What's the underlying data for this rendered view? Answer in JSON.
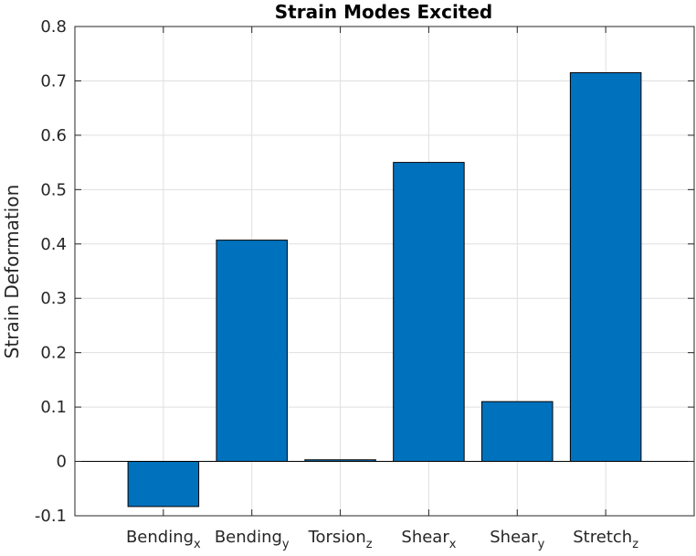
{
  "chart_data": {
    "type": "bar",
    "title": "Strain Modes Excited",
    "ylabel": "Strain Deformation",
    "xlabel": "",
    "ylim": [
      -0.1,
      0.8
    ],
    "yticks": [
      -0.1,
      0,
      0.1,
      0.2,
      0.3,
      0.4,
      0.5,
      0.6,
      0.7,
      0.8
    ],
    "ytick_labels": [
      "-0.1",
      "0",
      "0.1",
      "0.2",
      "0.3",
      "0.4",
      "0.5",
      "0.6",
      "0.7",
      "0.8"
    ],
    "grid": true,
    "categories": [
      {
        "base": "Bending",
        "sub": "x"
      },
      {
        "base": "Bending",
        "sub": "y"
      },
      {
        "base": "Torsion",
        "sub": "z"
      },
      {
        "base": "Shear",
        "sub": "x"
      },
      {
        "base": "Shear",
        "sub": "y"
      },
      {
        "base": "Stretch",
        "sub": "z"
      }
    ],
    "values": [
      -0.083,
      0.407,
      0.003,
      0.55,
      0.11,
      0.715
    ],
    "bar_color": "#0072bd",
    "bar_edge_color": "#000000",
    "grid_color": "#dfdfdf",
    "axis_color": "#262626"
  }
}
